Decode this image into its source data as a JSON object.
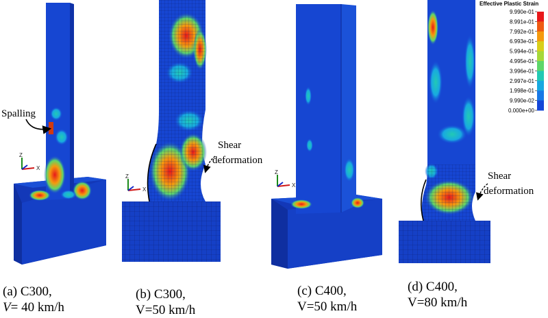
{
  "legend": {
    "title": "Effective Plastic Strain",
    "values": [
      "9.990e-01",
      "8.991e-01",
      "7.992e-01",
      "6.993e-01",
      "5.994e-01",
      "4.995e-01",
      "3.996e-01",
      "2.997e-01",
      "1.998e-01",
      "9.990e-02",
      "0.000e+00"
    ],
    "colors": [
      "#e8181a",
      "#ef5a12",
      "#f59a0e",
      "#d9cf1a",
      "#a6d83a",
      "#5ed66a",
      "#22c9b4",
      "#18a9e0",
      "#1878e6",
      "#1446d8"
    ]
  },
  "annotations": {
    "spalling": "Spalling",
    "shear_b_1": "Shear",
    "shear_b_2": "deformation",
    "shear_d_1": "Shear",
    "shear_d_2": "deformation"
  },
  "axes_labels": {
    "z": "Z",
    "x": "X"
  },
  "captions": {
    "a": {
      "line1": "(a) C300,",
      "v_prefix": "V",
      "v_rest": "= 40 km/h"
    },
    "b": {
      "line1": "(b) C300,",
      "line2": "V=50 km/h"
    },
    "c": {
      "line1": "(c) C400,",
      "line2": "V=50 km/h"
    },
    "d": {
      "line1": "(d) C400,",
      "line2": "V=80 km/h"
    }
  }
}
